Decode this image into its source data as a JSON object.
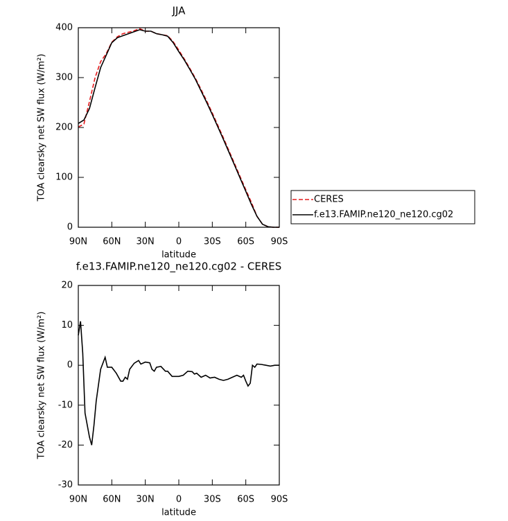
{
  "chart_data": [
    {
      "type": "line",
      "title": "JJA",
      "xlabel": "latitude",
      "ylabel": "TOA clearsky net SW flux (W/m²)",
      "xlim": [
        90,
        -90
      ],
      "xticks": [
        {
          "value": 90,
          "label": "90N"
        },
        {
          "value": 60,
          "label": "60N"
        },
        {
          "value": 30,
          "label": "30N"
        },
        0,
        {
          "value": -30,
          "label": "30S"
        },
        {
          "value": -60,
          "label": "60S"
        },
        {
          "value": -90,
          "label": "90S"
        }
      ],
      "ylim": [
        0,
        400
      ],
      "yticks": [
        0,
        100,
        200,
        300,
        400
      ],
      "legend": "right",
      "x": [
        90,
        85,
        80,
        75,
        70,
        65,
        60,
        55,
        50,
        45,
        40,
        35,
        30,
        25,
        20,
        15,
        10,
        5,
        0,
        -5,
        -10,
        -15,
        -20,
        -25,
        -30,
        -35,
        -40,
        -45,
        -50,
        -55,
        -60,
        -65,
        -70,
        -75,
        -80,
        -85,
        -90
      ],
      "series": [
        {
          "name": "CERES",
          "color": "#e41a1c",
          "line_style": "dashed",
          "values": [
            201,
            207,
            252,
            300,
            332,
            348,
            371,
            382,
            388,
            391,
            394,
            398,
            393,
            393,
            388,
            386,
            384,
            372,
            355,
            337,
            318,
            298,
            276,
            253,
            229,
            204,
            179,
            153,
            127,
            101,
            75,
            50,
            22,
            6,
            1,
            0,
            0
          ]
        },
        {
          "name": "f.e13.FAMIP.ne120_ne120.cg02",
          "color": "#000000",
          "line_style": "solid",
          "values": [
            208,
            215,
            238,
            280,
            320,
            345,
            370,
            380,
            384,
            388,
            392,
            396,
            393,
            393,
            388,
            386,
            383,
            370,
            352,
            335,
            316,
            296,
            273,
            250,
            226,
            201,
            176,
            150,
            124,
            98,
            72,
            46,
            22,
            6,
            1,
            0,
            0
          ]
        }
      ]
    },
    {
      "type": "line",
      "title": "f.e13.FAMIP.ne120_ne120.cg02 - CERES",
      "xlabel": "latitude",
      "ylabel": "TOA clearsky net SW flux (W/m²)",
      "xlim": [
        90,
        -90
      ],
      "xticks": [
        {
          "value": 90,
          "label": "90N"
        },
        {
          "value": 60,
          "label": "60N"
        },
        {
          "value": 30,
          "label": "30N"
        },
        0,
        {
          "value": -30,
          "label": "30S"
        },
        {
          "value": -60,
          "label": "60S"
        },
        {
          "value": -90,
          "label": "90S"
        }
      ],
      "ylim": [
        -30,
        20
      ],
      "yticks": [
        -30,
        -20,
        -10,
        0,
        10,
        20
      ],
      "x": [
        90,
        88,
        86,
        84,
        80,
        78,
        76,
        74,
        70,
        66,
        64,
        60,
        56,
        52,
        50,
        48,
        46,
        44,
        40,
        36,
        34,
        30,
        26,
        24,
        22,
        20,
        16,
        12,
        10,
        6,
        0,
        -4,
        -8,
        -12,
        -14,
        -16,
        -18,
        -20,
        -24,
        -28,
        -32,
        -36,
        -40,
        -44,
        -48,
        -52,
        -56,
        -58,
        -60,
        -62,
        -64,
        -66,
        -68,
        -70,
        -74,
        -78,
        -82,
        -86,
        -90
      ],
      "series": [
        {
          "color": "#000000",
          "line_style": "solid",
          "values": [
            7.5,
            11,
            3,
            -12,
            -18,
            -20,
            -15,
            -9,
            -1,
            2,
            -0.5,
            -0.5,
            -2,
            -4,
            -4,
            -3,
            -3.5,
            -1,
            0.5,
            1.2,
            0.3,
            0.8,
            0.6,
            -1,
            -1.5,
            -0.5,
            -0.3,
            -1.5,
            -1.5,
            -2.8,
            -2.8,
            -2.5,
            -1.5,
            -1.6,
            -2.2,
            -2,
            -2.5,
            -3,
            -2.5,
            -3.2,
            -3,
            -3.5,
            -3.8,
            -3.5,
            -3,
            -2.5,
            -3,
            -2.5,
            -4,
            -5.2,
            -4.5,
            0,
            -0.5,
            0.3,
            0.2,
            0,
            -0.2,
            0,
            0
          ]
        }
      ]
    }
  ]
}
